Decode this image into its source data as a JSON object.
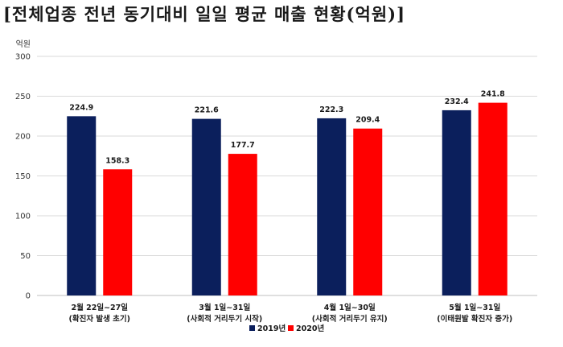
{
  "chart_data": {
    "type": "bar",
    "title": "[전체업종 전년 동기대비 일일 평균 매출 현황(억원)]",
    "ylabel": "억원",
    "ylim": [
      0,
      300
    ],
    "yticks": [
      0,
      50,
      100,
      150,
      200,
      250,
      300
    ],
    "grid": true,
    "legend_position": "bottom",
    "categories": [
      [
        "2월 22일~27일",
        "(확진자 발생 초기)"
      ],
      [
        "3월 1일~31일",
        "(사회적 거리두기 시작)"
      ],
      [
        "4월 1일~30일",
        "(사회적 거리두기 유지)"
      ],
      [
        "5월 1일~31일",
        "(이태원발 확진자 증가)"
      ]
    ],
    "series": [
      {
        "name": "2019년",
        "color": "#0b1f5c",
        "values": [
          224.9,
          221.6,
          222.3,
          232.4
        ]
      },
      {
        "name": "2020년",
        "color": "#ff0000",
        "values": [
          158.3,
          177.7,
          209.4,
          241.8
        ]
      }
    ]
  }
}
